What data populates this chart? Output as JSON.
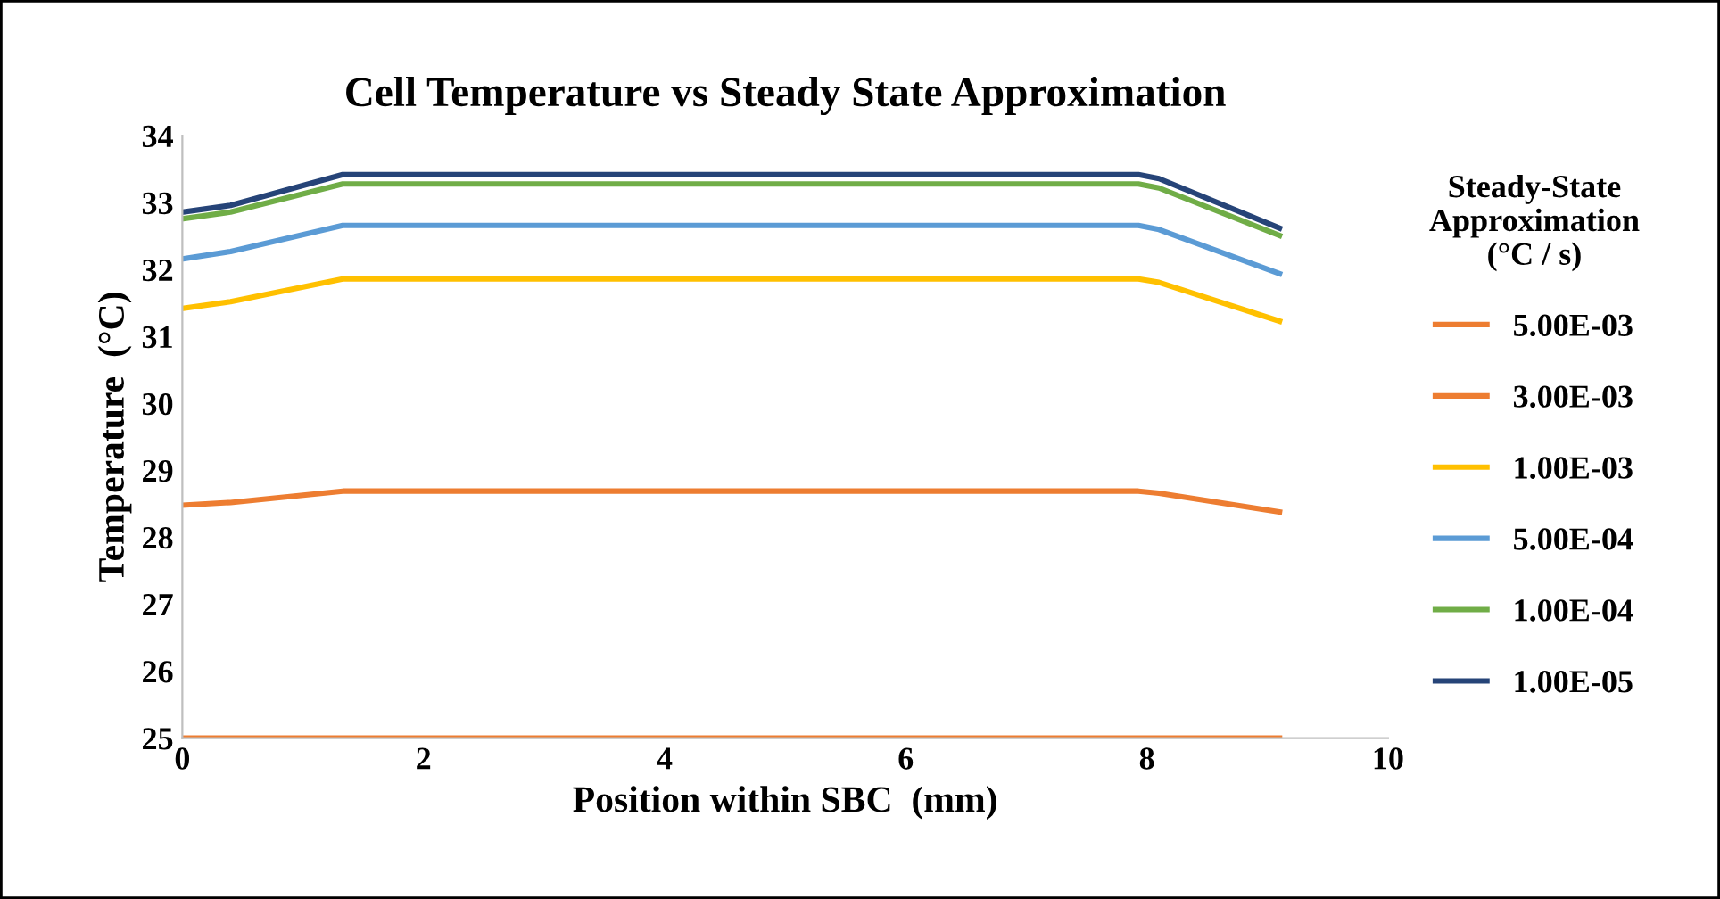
{
  "chart_data": {
    "type": "line",
    "title": "Cell Temperature vs Steady State Approximation",
    "xlabel": "Position within SBC  (mm)",
    "ylabel": "Temperature  (°C)",
    "legend_title": "Steady-State\nApproximation\n(°C / s)",
    "x": [
      0,
      0.4,
      1.33,
      7.93,
      8.1,
      9.1
    ],
    "series": [
      {
        "name": "5.00E-03",
        "color": "#ed7d31",
        "values": [
          25,
          25,
          25,
          25,
          25,
          25
        ]
      },
      {
        "name": "3.00E-03",
        "color": "#ed7d31",
        "values": [
          28.48,
          28.52,
          28.69,
          28.69,
          28.66,
          28.38
        ]
      },
      {
        "name": "1.00E-03",
        "color": "#ffc000",
        "values": [
          31.42,
          31.52,
          31.86,
          31.86,
          31.81,
          31.23
        ]
      },
      {
        "name": "5.00E-04",
        "color": "#5b9bd5",
        "values": [
          32.16,
          32.27,
          32.66,
          32.66,
          32.6,
          31.94
        ]
      },
      {
        "name": "1.00E-04",
        "color": "#70ad47",
        "values": [
          32.76,
          32.86,
          33.28,
          33.28,
          33.22,
          32.51
        ]
      },
      {
        "name": "1.00E-05",
        "color": "#264478",
        "values": [
          32.86,
          32.96,
          33.42,
          33.42,
          33.36,
          32.62
        ]
      }
    ],
    "xlim": [
      0,
      10
    ],
    "xticks": [
      0,
      2,
      4,
      6,
      8,
      10
    ],
    "ylim": [
      25,
      34
    ],
    "yticks": [
      25,
      26,
      27,
      28,
      29,
      30,
      31,
      32,
      33,
      34
    ],
    "grid": false,
    "legend": "right",
    "marker": "none",
    "line_style": "solid"
  }
}
